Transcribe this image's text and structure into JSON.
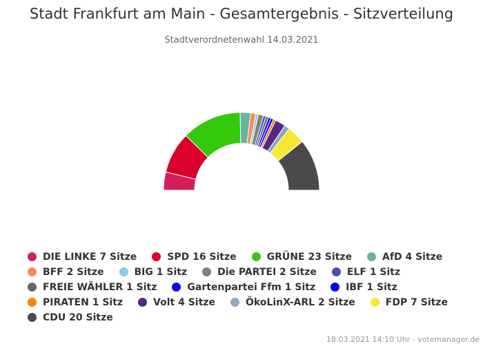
{
  "chart_data": {
    "type": "pie",
    "variant": "semicircle-donut",
    "title": "Stadt Frankfurt am Main - Gesamtergebnis - Sitzverteilung",
    "subtitle": "Stadtverordnetenwahl 14.03.2021",
    "series": [
      {
        "name": "DIE LINKE",
        "value": 7,
        "label": "DIE LINKE 7 Sitze",
        "color": "#d21f5a"
      },
      {
        "name": "SPD",
        "value": 16,
        "label": "SPD 16 Sitze",
        "color": "#d9002a"
      },
      {
        "name": "GRÜNE",
        "value": 23,
        "label": "GRÜNE 23 Sitze",
        "color": "#35c90c"
      },
      {
        "name": "AfD",
        "value": 4,
        "label": "AfD 4 Sitze",
        "color": "#67b2a0"
      },
      {
        "name": "BFF",
        "value": 2,
        "label": "BFF 2 Sitze",
        "color": "#fb8b54"
      },
      {
        "name": "BIG",
        "value": 1,
        "label": "BIG 1 Sitz",
        "color": "#88cdea"
      },
      {
        "name": "Die PARTEI",
        "value": 2,
        "label": "Die PARTEI 2 Sitze",
        "color": "#808080"
      },
      {
        "name": "ELF",
        "value": 1,
        "label": "ELF 1 Sitz",
        "color": "#4a4fae"
      },
      {
        "name": "FREIE WÄHLER",
        "value": 1,
        "label": "FREIE WÄHLER 1 Sitz",
        "color": "#666666"
      },
      {
        "name": "Gartenpartei Ffm",
        "value": 1,
        "label": "Gartenpartei Ffm 1 Sitz",
        "color": "#0a0aee"
      },
      {
        "name": "IBF",
        "value": 1,
        "label": "IBF 1 Sitz",
        "color": "#0000ee"
      },
      {
        "name": "PIRATEN",
        "value": 1,
        "label": "PIRATEN 1 Sitz",
        "color": "#ff8200"
      },
      {
        "name": "Volt",
        "value": 4,
        "label": "Volt 4 Sitze",
        "color": "#562883"
      },
      {
        "name": "ÖkoLinX-ARL",
        "value": 2,
        "label": "ÖkoLinX-ARL 2 Sitze",
        "color": "#8fa7bf"
      },
      {
        "name": "FDP",
        "value": 7,
        "label": "FDP 7 Sitze",
        "color": "#f7e737"
      },
      {
        "name": "CDU",
        "value": 20,
        "label": "CDU 20 Sitze",
        "color": "#4a4a4a"
      }
    ],
    "legend_position": "bottom"
  },
  "footer": "18.03.2021 14:10 Uhr - votemanager.de"
}
